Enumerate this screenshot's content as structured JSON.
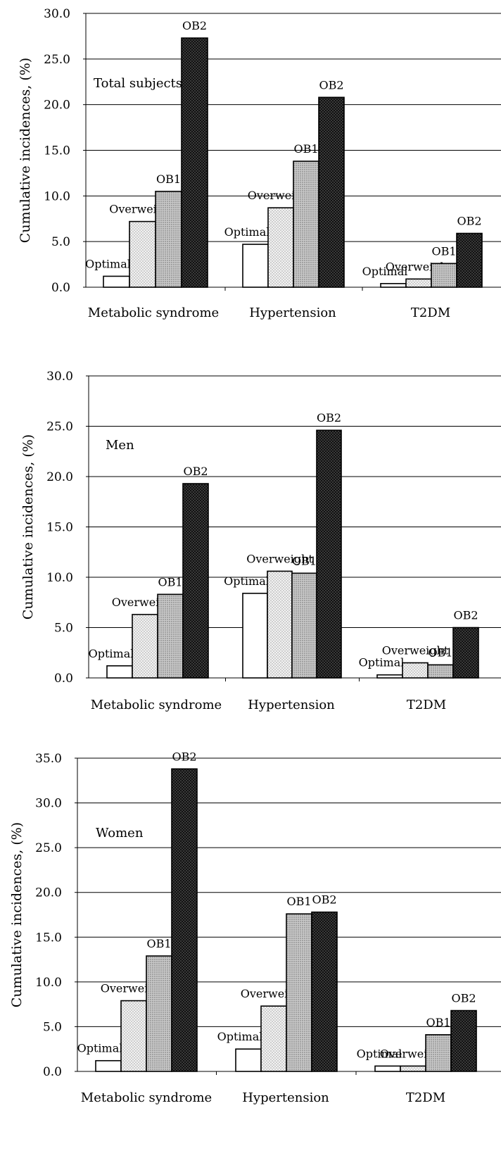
{
  "chart_data": [
    {
      "type": "bar",
      "panel_label": "Total subjects",
      "ylabel": "Cumulative incidences, (%)",
      "ylim": [
        0,
        30
      ],
      "yticks": [
        "0.0",
        "5.0",
        "10.0",
        "15.0",
        "20.0",
        "25.0",
        "30.0"
      ],
      "categories": [
        "Metabolic syndrome",
        "Hypertension",
        "T2DM"
      ],
      "series": [
        {
          "name": "Optimal",
          "values": [
            1.2,
            4.7,
            0.4
          ]
        },
        {
          "name": "Overweight",
          "values": [
            7.2,
            8.7,
            0.9
          ]
        },
        {
          "name": "OB1",
          "values": [
            10.5,
            13.8,
            2.6
          ]
        },
        {
          "name": "OB2",
          "values": [
            27.3,
            20.8,
            5.9
          ]
        }
      ]
    },
    {
      "type": "bar",
      "panel_label": "Men",
      "ylabel": "Cumulative incidences, (%)",
      "ylim": [
        0,
        30
      ],
      "yticks": [
        "0.0",
        "5.0",
        "10.0",
        "15.0",
        "20.0",
        "25.0",
        "30.0"
      ],
      "categories": [
        "Metabolic syndrome",
        "Hypertension",
        "T2DM"
      ],
      "series": [
        {
          "name": "Optimal",
          "values": [
            1.2,
            8.4,
            0.3
          ]
        },
        {
          "name": "Overweight",
          "values": [
            6.3,
            10.6,
            1.5
          ]
        },
        {
          "name": "OB1",
          "values": [
            8.3,
            10.4,
            1.3
          ]
        },
        {
          "name": "OB2",
          "values": [
            19.3,
            24.6,
            5.0
          ]
        }
      ]
    },
    {
      "type": "bar",
      "panel_label": "Women",
      "ylabel": "Cumulative incidences, (%)",
      "ylim": [
        0,
        35
      ],
      "yticks": [
        "0.0",
        "5.0",
        "10.0",
        "15.0",
        "20.0",
        "25.0",
        "30.0",
        "35.0"
      ],
      "categories": [
        "Metabolic syndrome",
        "Hypertension",
        "T2DM"
      ],
      "series": [
        {
          "name": "Optimal",
          "values": [
            1.2,
            2.5,
            0.6
          ]
        },
        {
          "name": "Overweight",
          "values": [
            7.9,
            7.3,
            0.6
          ]
        },
        {
          "name": "OB1",
          "values": [
            12.9,
            17.6,
            4.1
          ]
        },
        {
          "name": "OB2",
          "values": [
            33.8,
            17.8,
            6.8
          ]
        }
      ]
    }
  ],
  "colors": {
    "optimal": "#ffffff",
    "overweight": "#f2f2f2",
    "ob1": "#bdbdbd",
    "ob2": "#1e1e1e",
    "axis": "#000000"
  }
}
